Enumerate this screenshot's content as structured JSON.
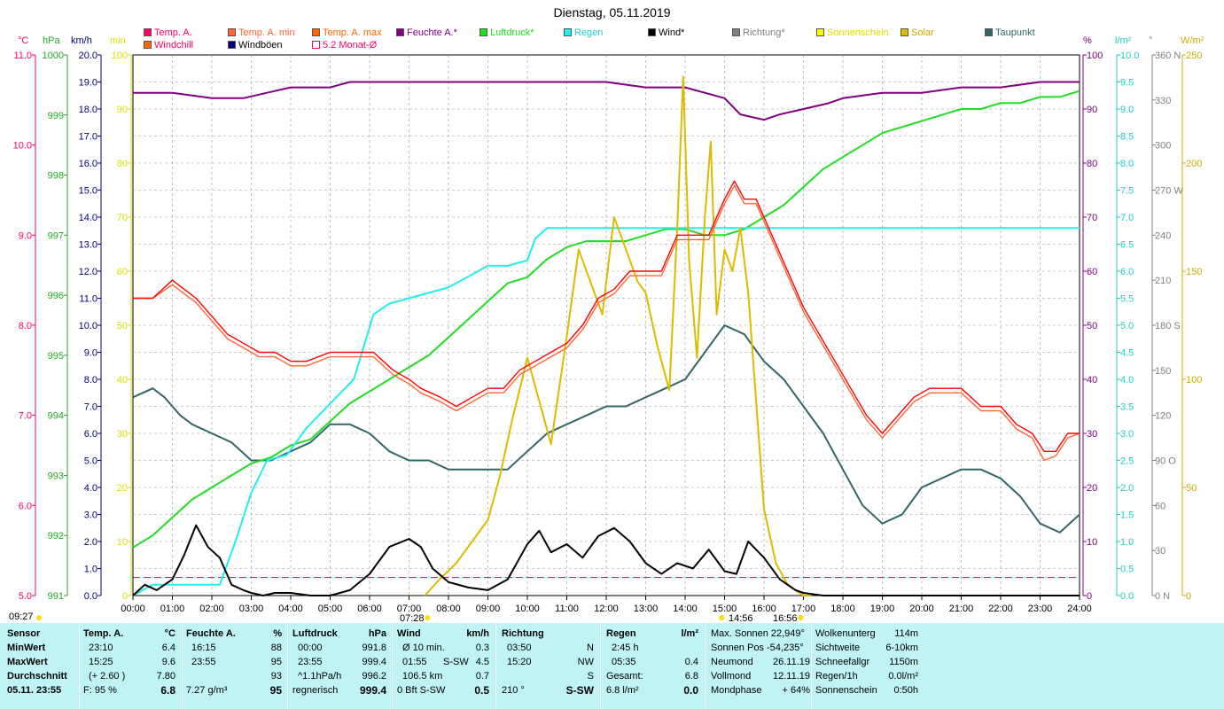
{
  "title": "Dienstag, 05.11.2019",
  "legend": [
    {
      "label": "Temp. A.",
      "color": "#ff0066"
    },
    {
      "label": "Temp. A. min",
      "color": "#ff6633"
    },
    {
      "label": "Temp. A. max",
      "color": "#ff6600"
    },
    {
      "label": "Feuchte A.*",
      "color": "#800080"
    },
    {
      "label": "Luftdruck*",
      "color": "#22dd22"
    },
    {
      "label": "Regen",
      "color": "#22eeee"
    },
    {
      "label": "Wind*",
      "color": "#000000"
    },
    {
      "label": "Richtung*",
      "color": "#808080"
    },
    {
      "label": "Sonnenschein",
      "color": "#ffff00"
    },
    {
      "label": "Solar",
      "color": "#ddbb00"
    },
    {
      "label": "Taupunkt",
      "color": "#336666"
    },
    {
      "label": "Windchill",
      "color": "#ff0066"
    },
    {
      "label": "Windböen",
      "color": "#000080"
    },
    {
      "label": "5.2 Monat-Ø",
      "color": "#ff0066"
    }
  ],
  "units": {
    "temp": "°C",
    "hpa": "hPa",
    "kmh": "km/h",
    "min": "min",
    "pct": "%",
    "lm2": "l/m²",
    "deg": "°",
    "wm2": "W/m²"
  },
  "markers": {
    "sunrise": "07:28",
    "sunset": "16:56",
    "left": "09:27",
    "noon": "14:56"
  },
  "chart_data": {
    "type": "line",
    "title": "Dienstag, 05.11.2019",
    "x_ticks": [
      "00:00",
      "01:00",
      "02:00",
      "03:00",
      "04:00",
      "05:00",
      "06:00",
      "07:00",
      "08:00",
      "09:00",
      "10:00",
      "11:00",
      "12:00",
      "13:00",
      "14:00",
      "15:00",
      "16:00",
      "17:00",
      "18:00",
      "19:00",
      "20:00",
      "21:00",
      "22:00",
      "23:00",
      "24:00"
    ],
    "axes": {
      "temp": {
        "label": "°C",
        "min": 5.0,
        "max": 11.0,
        "ticks": [
          "5.0",
          "6.0",
          "7.0",
          "8.0",
          "9.0",
          "10.0",
          "11.0"
        ]
      },
      "pressure": {
        "label": "hPa",
        "min": 991,
        "max": 1000,
        "ticks": [
          "991",
          "992",
          "993",
          "994",
          "995",
          "996",
          "997",
          "998",
          "999",
          "1000"
        ]
      },
      "wind": {
        "label": "km/h",
        "min": 0,
        "max": 20,
        "ticks": [
          "0.0",
          "1.0",
          "2.0",
          "3.0",
          "4.0",
          "5.0",
          "6.0",
          "7.0",
          "8.0",
          "9.0",
          "10.0",
          "11.0",
          "12.0",
          "13.0",
          "14.0",
          "15.0",
          "16.0",
          "17.0",
          "18.0",
          "19.0",
          "20.0"
        ]
      },
      "sunshine": {
        "label": "min",
        "min": 0,
        "max": 100,
        "ticks": [
          "0",
          "10",
          "20",
          "30",
          "40",
          "50",
          "60",
          "70",
          "80",
          "90",
          "100"
        ]
      },
      "humidity": {
        "label": "%",
        "min": 0,
        "max": 100,
        "ticks": [
          "0",
          "10",
          "20",
          "30",
          "40",
          "50",
          "60",
          "70",
          "80",
          "90",
          "100"
        ]
      },
      "rain": {
        "label": "l/m²",
        "min": 0,
        "max": 10,
        "ticks": [
          "0.0",
          "0.5",
          "1.0",
          "1.5",
          "2.0",
          "2.5",
          "3.0",
          "3.5",
          "4.0",
          "4.5",
          "5.0",
          "5.5",
          "6.0",
          "6.5",
          "7.0",
          "7.5",
          "8.0",
          "8.5",
          "9.0",
          "9.5",
          "10.0"
        ]
      },
      "direction": {
        "label": "°",
        "min": 0,
        "max": 360,
        "ticks": [
          "0 N",
          "30",
          "60",
          "90 O",
          "120",
          "150",
          "180 S",
          "210",
          "240",
          "270 W",
          "300",
          "330",
          "360 N"
        ]
      },
      "solar": {
        "label": "W/m²",
        "min": 0,
        "max": 250,
        "ticks": [
          "0",
          "50",
          "100",
          "150",
          "200",
          "250"
        ]
      }
    },
    "series": [
      {
        "name": "Temp. A.",
        "axis": "temp",
        "color": "#ff0000",
        "x": [
          0,
          0.5,
          1,
          1.3,
          1.6,
          2,
          2.4,
          2.8,
          3.2,
          3.6,
          4,
          4.4,
          5,
          5.6,
          6.1,
          6.6,
          7,
          7.3,
          7.8,
          8.2,
          8.6,
          9,
          9.4,
          9.8,
          10.2,
          10.6,
          11,
          11.4,
          11.8,
          12.2,
          12.6,
          13,
          13.4,
          13.8,
          14.2,
          14.6,
          15,
          15.25,
          15.5,
          15.8,
          16.2,
          16.6,
          17,
          17.4,
          17.8,
          18.2,
          18.6,
          19,
          19.4,
          19.8,
          20.2,
          20.6,
          21,
          21.5,
          22,
          22.4,
          22.8,
          23.1,
          23.4,
          23.7,
          24
        ],
        "y": [
          8.3,
          8.3,
          8.5,
          8.4,
          8.3,
          8.1,
          7.9,
          7.8,
          7.7,
          7.7,
          7.6,
          7.6,
          7.7,
          7.7,
          7.7,
          7.5,
          7.4,
          7.3,
          7.2,
          7.1,
          7.2,
          7.3,
          7.3,
          7.5,
          7.6,
          7.7,
          7.8,
          8.0,
          8.3,
          8.4,
          8.6,
          8.6,
          8.6,
          9.0,
          9.0,
          9.0,
          9.4,
          9.6,
          9.4,
          9.4,
          9.0,
          8.6,
          8.2,
          7.9,
          7.6,
          7.3,
          7.0,
          6.8,
          7.0,
          7.2,
          7.3,
          7.3,
          7.3,
          7.1,
          7.1,
          6.9,
          6.8,
          6.6,
          6.6,
          6.8,
          6.8
        ]
      },
      {
        "name": "Windchill",
        "axis": "temp",
        "color": "#ff6633",
        "x": [
          0,
          0.5,
          1,
          1.3,
          1.6,
          2,
          2.4,
          2.8,
          3.2,
          3.6,
          4,
          4.4,
          5,
          5.6,
          6.1,
          6.6,
          7,
          7.3,
          7.8,
          8.2,
          8.6,
          9,
          9.4,
          9.8,
          10.2,
          10.6,
          11,
          11.4,
          11.8,
          12.2,
          12.6,
          13,
          13.4,
          13.8,
          14.2,
          14.6,
          15,
          15.25,
          15.5,
          15.8,
          16.2,
          16.6,
          17,
          17.4,
          17.8,
          18.2,
          18.6,
          19,
          19.4,
          19.8,
          20.2,
          20.6,
          21,
          21.5,
          22,
          22.4,
          22.8,
          23.1,
          23.4,
          23.7,
          24
        ],
        "y": [
          8.3,
          8.3,
          8.45,
          8.35,
          8.25,
          8.05,
          7.85,
          7.75,
          7.65,
          7.65,
          7.55,
          7.55,
          7.65,
          7.65,
          7.65,
          7.45,
          7.35,
          7.25,
          7.15,
          7.05,
          7.15,
          7.25,
          7.25,
          7.45,
          7.55,
          7.65,
          7.75,
          7.95,
          8.25,
          8.35,
          8.55,
          8.55,
          8.55,
          8.95,
          8.95,
          8.95,
          9.35,
          9.55,
          9.35,
          9.35,
          8.95,
          8.55,
          8.15,
          7.85,
          7.55,
          7.25,
          6.95,
          6.75,
          6.95,
          7.15,
          7.25,
          7.25,
          7.25,
          7.05,
          7.05,
          6.85,
          6.75,
          6.5,
          6.55,
          6.75,
          6.8
        ]
      },
      {
        "name": "Feuchte A.*",
        "axis": "humidity",
        "color": "#800080",
        "x": [
          0,
          1,
          2,
          2.8,
          3.4,
          4,
          5,
          5.5,
          6,
          8,
          10,
          12,
          13,
          14,
          15,
          15.4,
          16,
          16.4,
          17,
          17.6,
          18,
          19,
          20,
          21,
          22,
          23,
          24
        ],
        "y": [
          93,
          93,
          92,
          92,
          93,
          94,
          94,
          95,
          95,
          95,
          95,
          95,
          94,
          94,
          92,
          89,
          88,
          89,
          90,
          91,
          92,
          93,
          93,
          94,
          94,
          95,
          95
        ]
      },
      {
        "name": "Luftdruck*",
        "axis": "pressure",
        "color": "#22dd22",
        "x": [
          0,
          0.5,
          1,
          1.5,
          2,
          2.5,
          3,
          3.5,
          4,
          4.5,
          5,
          5.5,
          6,
          6.5,
          7,
          7.5,
          8,
          8.5,
          9,
          9.5,
          10,
          10.5,
          11,
          11.5,
          12,
          12.5,
          13,
          13.5,
          14,
          14.5,
          15,
          15.5,
          16,
          16.5,
          17,
          17.5,
          18,
          18.5,
          19,
          19.5,
          20,
          20.5,
          21,
          21.5,
          22,
          22.5,
          23,
          23.5,
          24
        ],
        "y": [
          991.8,
          992.0,
          992.3,
          992.6,
          992.8,
          993.0,
          993.2,
          993.3,
          993.5,
          993.6,
          993.9,
          994.2,
          994.4,
          994.6,
          994.8,
          995.0,
          995.3,
          995.6,
          995.9,
          996.2,
          996.3,
          996.6,
          996.8,
          996.9,
          996.9,
          996.9,
          997.0,
          997.1,
          997.1,
          997.0,
          997.0,
          997.1,
          997.3,
          997.5,
          997.8,
          998.1,
          998.3,
          998.5,
          998.7,
          998.8,
          998.9,
          999.0,
          999.1,
          999.1,
          999.2,
          999.2,
          999.3,
          999.3,
          999.4
        ]
      },
      {
        "name": "Regen",
        "axis": "rain",
        "color": "#22eeee",
        "x": [
          0,
          0.5,
          1,
          1.5,
          2.2,
          2.6,
          3,
          3.4,
          3.9,
          4.4,
          5.6,
          6.1,
          6.5,
          7,
          7.5,
          8,
          8.5,
          9,
          9.5,
          10,
          10.2,
          10.5,
          24
        ],
        "y": [
          0,
          0.2,
          0.2,
          0.2,
          0.2,
          1.0,
          1.9,
          2.5,
          2.6,
          3.1,
          4.0,
          5.2,
          5.4,
          5.5,
          5.6,
          5.7,
          5.9,
          6.1,
          6.1,
          6.2,
          6.6,
          6.8,
          6.8
        ]
      },
      {
        "name": "Wind*",
        "axis": "wind",
        "color": "#000000",
        "x": [
          0,
          0.3,
          0.6,
          1,
          1.3,
          1.6,
          1.9,
          2.2,
          2.5,
          2.8,
          3.0,
          3.3,
          3.6,
          4,
          4.5,
          5,
          5.5,
          6,
          6.5,
          7,
          7.3,
          7.6,
          8,
          8.5,
          9,
          9.5,
          10,
          10.3,
          10.6,
          11,
          11.4,
          11.8,
          12.2,
          12.6,
          13,
          13.4,
          13.8,
          14.2,
          14.6,
          15,
          15.3,
          15.6,
          16,
          16.4,
          16.8,
          17,
          17.5,
          18,
          19,
          20,
          21,
          22,
          23,
          24
        ],
        "y": [
          0.0,
          0.4,
          0.2,
          0.6,
          1.5,
          2.6,
          1.8,
          1.4,
          0.4,
          0.2,
          0.1,
          0.0,
          0.1,
          0.1,
          0.0,
          0.0,
          0.2,
          0.8,
          1.8,
          2.1,
          1.8,
          1.0,
          0.5,
          0.3,
          0.2,
          0.6,
          1.9,
          2.4,
          1.6,
          1.9,
          1.4,
          2.2,
          2.5,
          2.0,
          1.2,
          0.8,
          1.2,
          1.0,
          1.7,
          0.9,
          0.8,
          2.0,
          1.4,
          0.6,
          0.2,
          0.1,
          0.0,
          0.0,
          0.0,
          0.0,
          0.0,
          0.0,
          0.0,
          0.0
        ]
      },
      {
        "name": "Taupunkt",
        "axis": "temp",
        "color": "#336666",
        "x": [
          0,
          0.5,
          0.8,
          1.0,
          1.2,
          1.5,
          2,
          2.5,
          3,
          3.5,
          4,
          4.5,
          5,
          5.5,
          6,
          6.5,
          7,
          7.5,
          8,
          8.5,
          9,
          9.5,
          10,
          10.5,
          11,
          11.5,
          12,
          12.5,
          13,
          13.5,
          14,
          14.5,
          15,
          15.5,
          16,
          16.5,
          17,
          17.5,
          18,
          18.5,
          19,
          19.5,
          20,
          20.5,
          21,
          21.5,
          22,
          22.5,
          23,
          23.5,
          24
        ],
        "y": [
          7.2,
          7.3,
          7.2,
          7.1,
          7.0,
          6.9,
          6.8,
          6.7,
          6.5,
          6.5,
          6.6,
          6.7,
          6.9,
          6.9,
          6.8,
          6.6,
          6.5,
          6.5,
          6.4,
          6.4,
          6.4,
          6.4,
          6.6,
          6.8,
          6.9,
          7.0,
          7.1,
          7.1,
          7.2,
          7.3,
          7.4,
          7.7,
          8.0,
          7.9,
          7.6,
          7.4,
          7.1,
          6.8,
          6.4,
          6.0,
          5.8,
          5.9,
          6.2,
          6.3,
          6.4,
          6.4,
          6.3,
          6.1,
          5.8,
          5.7,
          5.9
        ]
      },
      {
        "name": "Solar",
        "axis": "solar",
        "color": "#ddbb00",
        "x": [
          7.4,
          7.8,
          8.2,
          8.6,
          9,
          9.3,
          9.6,
          10,
          10.3,
          10.6,
          11,
          11.3,
          11.6,
          11.9,
          12.2,
          12.5,
          12.8,
          13,
          13.3,
          13.6,
          13.8,
          13.95,
          14.1,
          14.3,
          14.5,
          14.65,
          14.8,
          15,
          15.2,
          15.4,
          15.6,
          15.8,
          16,
          16.3,
          16.6,
          17,
          17.2
        ],
        "y": [
          0,
          8,
          15,
          25,
          35,
          55,
          80,
          110,
          90,
          70,
          120,
          160,
          145,
          130,
          175,
          160,
          145,
          140,
          115,
          95,
          170,
          240,
          155,
          110,
          175,
          210,
          130,
          160,
          150,
          170,
          140,
          90,
          40,
          15,
          5,
          0,
          0
        ]
      }
    ]
  },
  "stats": {
    "col_sensor": {
      "header": "Sensor",
      "min": "MinWert",
      "max": "MaxWert",
      "avg": "Durchschnitt",
      "date": "05.11. 23:55"
    },
    "col_temp": {
      "header": "Temp. A.",
      "unit": "°C",
      "min_t": "23:10",
      "min_v": "6.4",
      "max_t": "15:25",
      "max_v": "9.6",
      "avg_t": "(+ 2.60 )",
      "avg_v": "7.80",
      "cur_l": "F: 95 %",
      "cur_v": "6.8"
    },
    "col_hum": {
      "header": "Feuchte A.",
      "unit": "%",
      "min_t": "16:15",
      "min_v": "88",
      "max_t": "23:55",
      "max_v": "95",
      "avg_v": "93",
      "cur_l": "7.27 g/m³",
      "cur_v": "95"
    },
    "col_press": {
      "header": "Luftdruck",
      "unit": "hPa",
      "min_t": "00:00",
      "min_v": "991.8",
      "max_t": "23:55",
      "max_v": "999.4",
      "avg_t": "^1.1hPa/h",
      "avg_v": "996.2",
      "cur_l": "regnerisch",
      "cur_v": "999.4"
    },
    "col_wind": {
      "header": "Wind",
      "unit": "km/h",
      "r1_l": "Ø 10 min.",
      "r1_v": "0.3",
      "r2_l": "01:55",
      "r2_m": "S-SW",
      "r2_v": "4.5",
      "r3_l": "106.5 km",
      "r3_v": "0.7",
      "r4_l": "0 Bft S-SW",
      "r4_v": "0.5"
    },
    "col_dir": {
      "header": "Richtung",
      "r1_l": "03:50",
      "r1_v": "N",
      "r2_l": "15:20",
      "r2_v": "NW",
      "r3_v": "S",
      "r4_l": "210 °",
      "r4_v": "S-SW"
    },
    "col_rain": {
      "header": "Regen",
      "unit": "l/m²",
      "r1_l": "2:45 h",
      "r2_l": "05:35",
      "r2_v": "0.4",
      "r3_l": "Gesamt:",
      "r3_v": "6.8",
      "r4_l": "6.8 l/m²",
      "r4_v": "0.0"
    },
    "col_sun": {
      "r1": "Max. Sonnen 22,949°",
      "r2": "Sonnen Pos  -54,235°",
      "r3_l": "Neumond",
      "r3_v": "26.11.19",
      "r4_l": "Vollmond",
      "r4_v": "12.11.19",
      "r5_l": "Mondphase",
      "r5_v": "+ 64%"
    },
    "col_misc": {
      "r1_l": "Wolkenunterg",
      "r1_v": "114m",
      "r2_l": "Sichtweite",
      "r2_v": "6-10km",
      "r3_l": "Schneefallgr",
      "r3_v": "1150m",
      "r4_l": "Regen/1h",
      "r4_v": "0.0l/m²",
      "r5_l": "Sonnenschein",
      "r5_v": "0:50h"
    }
  }
}
